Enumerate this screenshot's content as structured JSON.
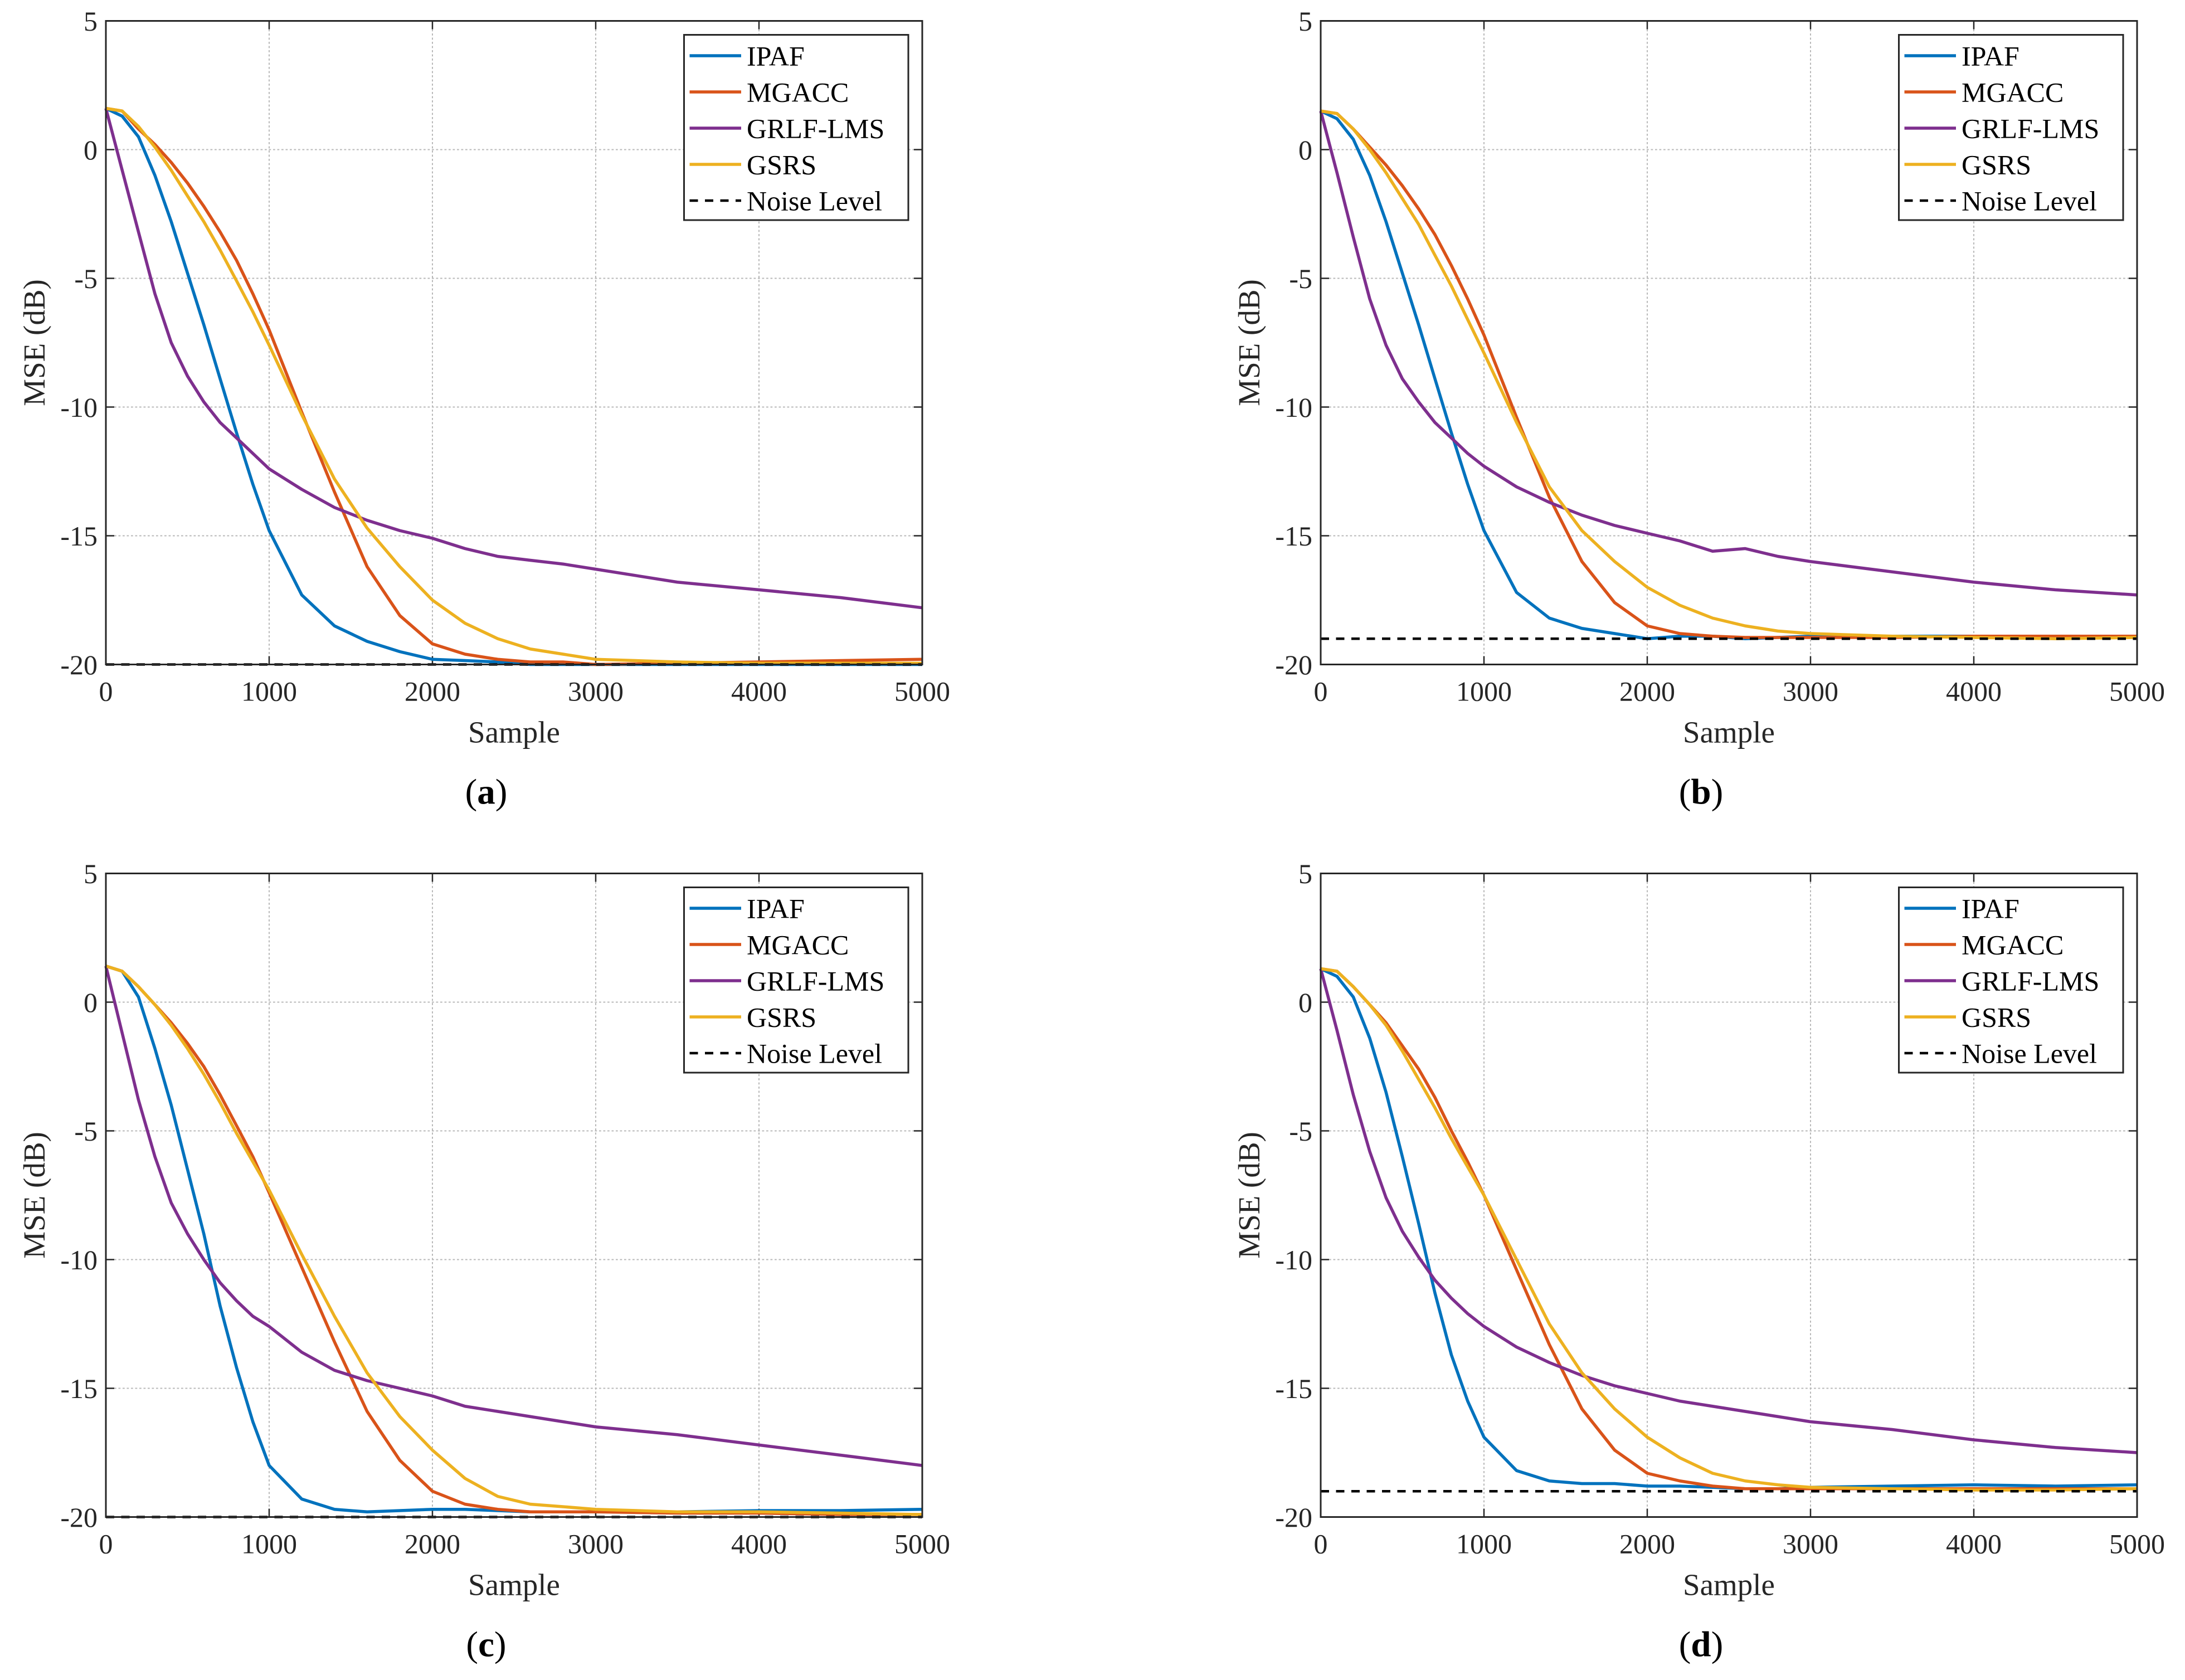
{
  "chart_data": [
    {
      "type": "line",
      "panel_label": "a",
      "xlabel": "Sample",
      "ylabel": "MSE (dB)",
      "xlim": [
        0,
        5000
      ],
      "ylim": [
        -20,
        5
      ],
      "xticks": [
        0,
        1000,
        2000,
        3000,
        4000,
        5000
      ],
      "yticks": [
        5,
        0,
        -5,
        -10,
        -15,
        -20
      ],
      "grid": true,
      "legend_position": "top-right",
      "x": [
        0,
        100,
        200,
        300,
        400,
        500,
        600,
        700,
        800,
        900,
        1000,
        1200,
        1400,
        1600,
        1800,
        2000,
        2200,
        2400,
        2600,
        2800,
        3000,
        3500,
        4000,
        4500,
        5000
      ],
      "series": [
        {
          "name": "IPAF",
          "color": "#0072BD",
          "values": [
            1.6,
            1.3,
            0.5,
            -1,
            -2.8,
            -4.8,
            -6.8,
            -8.9,
            -11,
            -13,
            -14.8,
            -17.3,
            -18.5,
            -19.1,
            -19.5,
            -19.8,
            -19.85,
            -19.9,
            -20,
            -20,
            -20,
            -20,
            -20,
            -20,
            -20
          ]
        },
        {
          "name": "MGACC",
          "color": "#D95319",
          "values": [
            1.6,
            1.5,
            0.8,
            0.2,
            -0.5,
            -1.3,
            -2.2,
            -3.2,
            -4.3,
            -5.6,
            -7,
            -10.2,
            -13.3,
            -16.2,
            -18.1,
            -19.2,
            -19.6,
            -19.8,
            -19.9,
            -19.9,
            -20,
            -19.95,
            -19.9,
            -19.85,
            -19.8
          ]
        },
        {
          "name": "GRLF-LMS",
          "color": "#7E2F8E",
          "values": [
            1.6,
            -0.8,
            -3.2,
            -5.6,
            -7.5,
            -8.8,
            -9.8,
            -10.6,
            -11.2,
            -11.8,
            -12.4,
            -13.2,
            -13.9,
            -14.4,
            -14.8,
            -15.1,
            -15.5,
            -15.8,
            -15.95,
            -16.1,
            -16.3,
            -16.8,
            -17.1,
            -17.4,
            -17.8
          ]
        },
        {
          "name": "GSRS",
          "color": "#EDB120",
          "values": [
            1.6,
            1.5,
            0.9,
            0.1,
            -0.8,
            -1.8,
            -2.8,
            -3.9,
            -5.1,
            -6.3,
            -7.6,
            -10.3,
            -12.8,
            -14.7,
            -16.2,
            -17.5,
            -18.4,
            -19,
            -19.4,
            -19.6,
            -19.8,
            -19.9,
            -19.95,
            -19.95,
            -19.95
          ]
        },
        {
          "name": "Noise Level",
          "color": "#000000",
          "dashed": true,
          "values": [
            -20,
            -20,
            -20,
            -20,
            -20,
            -20,
            -20,
            -20,
            -20,
            -20,
            -20,
            -20,
            -20,
            -20,
            -20,
            -20,
            -20,
            -20,
            -20,
            -20,
            -20,
            -20,
            -20,
            -20,
            -20
          ]
        }
      ]
    },
    {
      "type": "line",
      "panel_label": "b",
      "xlabel": "Sample",
      "ylabel": "MSE (dB)",
      "xlim": [
        0,
        5000
      ],
      "ylim": [
        -20,
        5
      ],
      "xticks": [
        0,
        1000,
        2000,
        3000,
        4000,
        5000
      ],
      "yticks": [
        5,
        0,
        -5,
        -10,
        -15,
        -20
      ],
      "grid": true,
      "legend_position": "top-right",
      "x": [
        0,
        100,
        200,
        300,
        400,
        500,
        600,
        700,
        800,
        900,
        1000,
        1200,
        1400,
        1600,
        1800,
        2000,
        2200,
        2400,
        2600,
        2800,
        3000,
        3500,
        4000,
        4500,
        5000
      ],
      "series": [
        {
          "name": "IPAF",
          "color": "#0072BD",
          "values": [
            1.5,
            1.2,
            0.4,
            -1,
            -2.8,
            -4.8,
            -6.8,
            -8.9,
            -11,
            -13,
            -14.8,
            -17.2,
            -18.2,
            -18.6,
            -18.8,
            -19,
            -18.9,
            -18.9,
            -19,
            -18.95,
            -18.9,
            -18.9,
            -18.9,
            -18.9,
            -18.9
          ]
        },
        {
          "name": "MGACC",
          "color": "#D95319",
          "values": [
            1.5,
            1.4,
            0.8,
            0.1,
            -0.6,
            -1.4,
            -2.3,
            -3.3,
            -4.5,
            -5.8,
            -7.2,
            -10.4,
            -13.5,
            -16,
            -17.6,
            -18.5,
            -18.8,
            -18.9,
            -18.95,
            -18.95,
            -18.95,
            -18.95,
            -18.9,
            -18.9,
            -18.9
          ]
        },
        {
          "name": "GRLF-LMS",
          "color": "#7E2F8E",
          "values": [
            1.5,
            -0.9,
            -3.4,
            -5.8,
            -7.6,
            -8.9,
            -9.8,
            -10.6,
            -11.2,
            -11.8,
            -12.3,
            -13.1,
            -13.7,
            -14.2,
            -14.6,
            -14.9,
            -15.2,
            -15.6,
            -15.5,
            -15.8,
            -16,
            -16.4,
            -16.8,
            -17.1,
            -17.3
          ]
        },
        {
          "name": "GSRS",
          "color": "#EDB120",
          "values": [
            1.5,
            1.4,
            0.8,
            0,
            -0.9,
            -1.9,
            -2.9,
            -4.1,
            -5.3,
            -6.6,
            -7.9,
            -10.6,
            -13.1,
            -14.8,
            -16,
            -17,
            -17.7,
            -18.2,
            -18.5,
            -18.7,
            -18.8,
            -18.9,
            -18.95,
            -19,
            -18.95
          ]
        },
        {
          "name": "Noise Level",
          "color": "#000000",
          "dashed": true,
          "values": [
            -19,
            -19,
            -19,
            -19,
            -19,
            -19,
            -19,
            -19,
            -19,
            -19,
            -19,
            -19,
            -19,
            -19,
            -19,
            -19,
            -19,
            -19,
            -19,
            -19,
            -19,
            -19,
            -19,
            -19,
            -19
          ]
        }
      ]
    },
    {
      "type": "line",
      "panel_label": "c",
      "xlabel": "Sample",
      "ylabel": "MSE (dB)",
      "xlim": [
        0,
        5000
      ],
      "ylim": [
        -20,
        5
      ],
      "xticks": [
        0,
        1000,
        2000,
        3000,
        4000,
        5000
      ],
      "yticks": [
        5,
        0,
        -5,
        -10,
        -15,
        -20
      ],
      "grid": true,
      "legend_position": "top-right",
      "x": [
        0,
        100,
        200,
        300,
        400,
        500,
        600,
        700,
        800,
        900,
        1000,
        1200,
        1400,
        1600,
        1800,
        2000,
        2200,
        2400,
        2600,
        2800,
        3000,
        3500,
        4000,
        4500,
        5000
      ],
      "series": [
        {
          "name": "IPAF",
          "color": "#0072BD",
          "values": [
            1.4,
            1.2,
            0.2,
            -1.8,
            -4,
            -6.5,
            -9,
            -11.8,
            -14.2,
            -16.3,
            -18,
            -19.3,
            -19.7,
            -19.8,
            -19.75,
            -19.7,
            -19.7,
            -19.75,
            -19.8,
            -19.8,
            -19.8,
            -19.8,
            -19.75,
            -19.75,
            -19.7
          ]
        },
        {
          "name": "MGACC",
          "color": "#D95319",
          "values": [
            1.4,
            1.2,
            0.6,
            -0.1,
            -0.8,
            -1.6,
            -2.5,
            -3.6,
            -4.8,
            -6,
            -7.4,
            -10.3,
            -13.2,
            -15.9,
            -17.8,
            -19,
            -19.5,
            -19.7,
            -19.8,
            -19.8,
            -19.8,
            -19.85,
            -19.85,
            -19.9,
            -19.9
          ]
        },
        {
          "name": "GRLF-LMS",
          "color": "#7E2F8E",
          "values": [
            1.4,
            -1.2,
            -3.8,
            -6,
            -7.8,
            -9,
            -10,
            -10.9,
            -11.6,
            -12.2,
            -12.6,
            -13.6,
            -14.3,
            -14.7,
            -15,
            -15.3,
            -15.7,
            -15.9,
            -16.1,
            -16.3,
            -16.5,
            -16.8,
            -17.2,
            -17.6,
            -18
          ]
        },
        {
          "name": "GSRS",
          "color": "#EDB120",
          "values": [
            1.4,
            1.2,
            0.6,
            -0.1,
            -0.9,
            -1.8,
            -2.8,
            -3.9,
            -5.1,
            -6.2,
            -7.3,
            -9.8,
            -12.2,
            -14.4,
            -16.1,
            -17.4,
            -18.5,
            -19.2,
            -19.5,
            -19.6,
            -19.7,
            -19.8,
            -19.8,
            -19.85,
            -19.9
          ]
        },
        {
          "name": "Noise Level",
          "color": "#000000",
          "dashed": true,
          "values": [
            -20,
            -20,
            -20,
            -20,
            -20,
            -20,
            -20,
            -20,
            -20,
            -20,
            -20,
            -20,
            -20,
            -20,
            -20,
            -20,
            -20,
            -20,
            -20,
            -20,
            -20,
            -20,
            -20,
            -20,
            -20
          ]
        }
      ]
    },
    {
      "type": "line",
      "panel_label": "d",
      "xlabel": "Sample",
      "ylabel": "MSE (dB)",
      "xlim": [
        0,
        5000
      ],
      "ylim": [
        -20,
        5
      ],
      "xticks": [
        0,
        1000,
        2000,
        3000,
        4000,
        5000
      ],
      "yticks": [
        5,
        0,
        -5,
        -10,
        -15,
        -20
      ],
      "grid": true,
      "legend_position": "top-right",
      "x": [
        0,
        100,
        200,
        300,
        400,
        500,
        600,
        700,
        800,
        900,
        1000,
        1200,
        1400,
        1600,
        1800,
        2000,
        2200,
        2400,
        2600,
        2800,
        3000,
        3500,
        4000,
        4500,
        5000
      ],
      "series": [
        {
          "name": "IPAF",
          "color": "#0072BD",
          "values": [
            1.3,
            1,
            0.2,
            -1.4,
            -3.5,
            -6,
            -8.6,
            -11.3,
            -13.7,
            -15.5,
            -16.9,
            -18.2,
            -18.6,
            -18.7,
            -18.7,
            -18.8,
            -18.8,
            -18.85,
            -18.9,
            -18.9,
            -18.85,
            -18.8,
            -18.75,
            -18.8,
            -18.75
          ]
        },
        {
          "name": "MGACC",
          "color": "#D95319",
          "values": [
            1.3,
            1.2,
            0.6,
            -0.1,
            -0.8,
            -1.7,
            -2.6,
            -3.7,
            -5,
            -6.2,
            -7.5,
            -10.4,
            -13.3,
            -15.8,
            -17.4,
            -18.3,
            -18.6,
            -18.8,
            -18.9,
            -18.9,
            -18.9,
            -18.9,
            -18.9,
            -18.9,
            -18.9
          ]
        },
        {
          "name": "GRLF-LMS",
          "color": "#7E2F8E",
          "values": [
            1.3,
            -1.1,
            -3.6,
            -5.8,
            -7.6,
            -8.9,
            -9.9,
            -10.8,
            -11.5,
            -12.1,
            -12.6,
            -13.4,
            -14,
            -14.5,
            -14.9,
            -15.2,
            -15.5,
            -15.7,
            -15.9,
            -16.1,
            -16.3,
            -16.6,
            -17,
            -17.3,
            -17.5
          ]
        },
        {
          "name": "GSRS",
          "color": "#EDB120",
          "values": [
            1.3,
            1.2,
            0.6,
            -0.1,
            -0.9,
            -1.9,
            -3,
            -4.1,
            -5.3,
            -6.4,
            -7.5,
            -10,
            -12.5,
            -14.4,
            -15.8,
            -16.9,
            -17.7,
            -18.3,
            -18.6,
            -18.75,
            -18.85,
            -18.9,
            -18.95,
            -18.95,
            -18.9
          ]
        },
        {
          "name": "Noise Level",
          "color": "#000000",
          "dashed": true,
          "values": [
            -19,
            -19,
            -19,
            -19,
            -19,
            -19,
            -19,
            -19,
            -19,
            -19,
            -19,
            -19,
            -19,
            -19,
            -19,
            -19,
            -19,
            -19,
            -19,
            -19,
            -19,
            -19,
            -19,
            -19,
            -19
          ]
        }
      ]
    }
  ]
}
